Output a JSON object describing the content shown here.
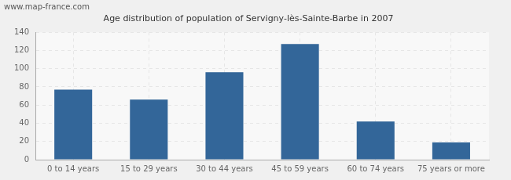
{
  "chart_data": {
    "type": "bar",
    "title": "Age distribution of population of Servigny-lès-Sainte-Barbe in 2007",
    "annotations": [
      "www.map-france.com"
    ],
    "categories": [
      "0 to 14 years",
      "15 to 29 years",
      "30 to 44 years",
      "45 to 59 years",
      "60 to 74 years",
      "75 years or more"
    ],
    "values": [
      77,
      66,
      96,
      127,
      42,
      19
    ],
    "color": "#336699",
    "ylim": [
      0,
      140
    ],
    "yticks": [
      0,
      20,
      40,
      60,
      80,
      100,
      120,
      140
    ],
    "grid": true
  }
}
